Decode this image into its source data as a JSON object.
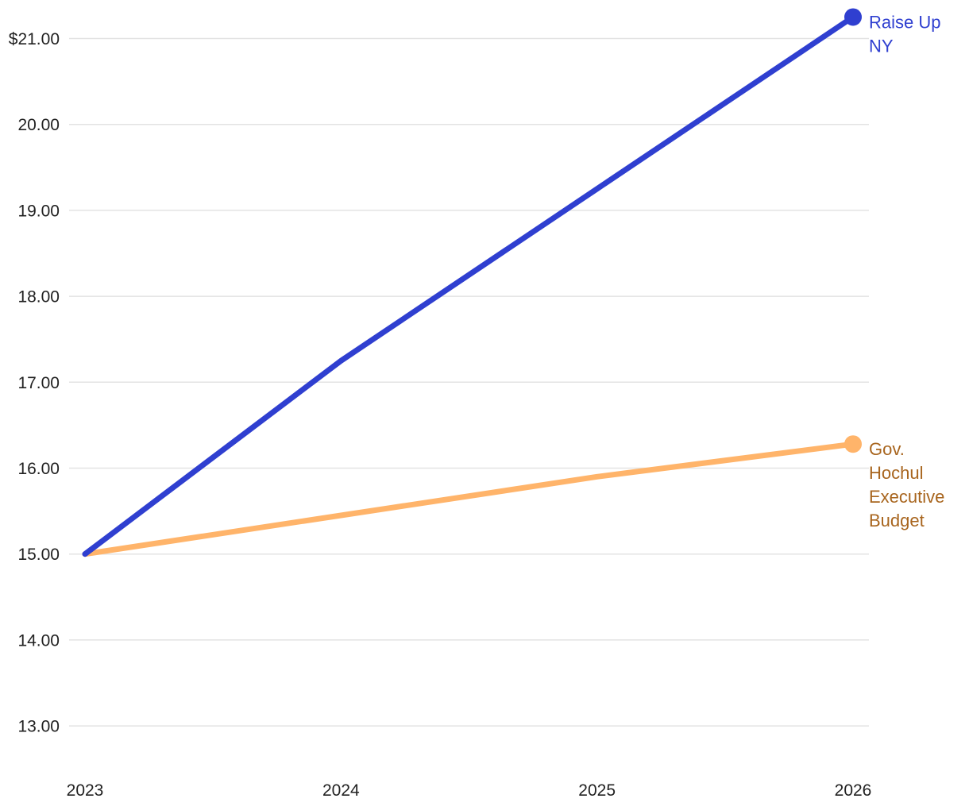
{
  "chart_data": {
    "type": "line",
    "x": [
      "2023",
      "2024",
      "2025",
      "2026"
    ],
    "xlabel": "",
    "ylabel": "",
    "ylim": [
      12.5,
      21.25
    ],
    "y_ticks": [
      13,
      14,
      15,
      16,
      17,
      18,
      19,
      20,
      21
    ],
    "y_tick_labels": [
      "13.00",
      "14.00",
      "15.00",
      "16.00",
      "17.00",
      "18.00",
      "19.00",
      "20.00",
      "$21.00"
    ],
    "grid": true,
    "legend": "end-of-line labels",
    "series": [
      {
        "name": "Raise Up NY",
        "label_lines": [
          "Raise Up",
          "NY"
        ],
        "values": [
          15.0,
          17.25,
          19.25,
          21.25
        ],
        "color": "#2f3fd0",
        "label_color": "#2f3fd0"
      },
      {
        "name": "Gov. Hochul Executive Budget",
        "label_lines": [
          "Gov.",
          "Hochul",
          "Executive",
          "Budget"
        ],
        "values": [
          15.0,
          15.45,
          15.9,
          16.28
        ],
        "color": "#ffb46a",
        "label_color": "#a8651e"
      }
    ]
  }
}
